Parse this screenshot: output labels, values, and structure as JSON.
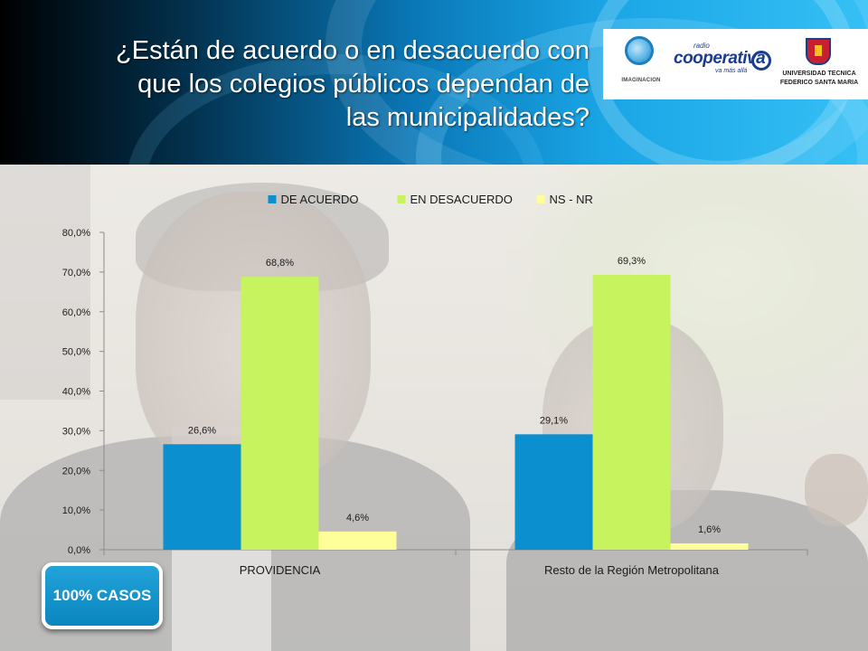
{
  "header": {
    "title_lines": [
      "¿Están de acuerdo o en desacuerdo con",
      "que los colegios públicos dependan de",
      "las municipalidades?"
    ]
  },
  "logos": {
    "imaginacion": "IMAGINACION",
    "cooperativa_small": "radio",
    "cooperativa": "cooperativa",
    "cooperativa_tagline": "va más allá",
    "utfsm_line1": "UNIVERSIDAD TECNICA",
    "utfsm_line2": "FEDERICO SANTA MARIA"
  },
  "badge": {
    "label": "100% CASOS"
  },
  "chart_data": {
    "type": "bar",
    "categories": [
      "PROVIDENCIA",
      "Resto de la Región Metropolitana"
    ],
    "series": [
      {
        "name": "DE ACUERDO",
        "color": "#0b8fcf",
        "values": [
          26.6,
          29.1
        ],
        "labels": [
          "26,6%",
          "29,1%"
        ]
      },
      {
        "name": "EN DESACUERDO",
        "color": "#c7f35e",
        "values": [
          68.8,
          69.3
        ],
        "labels": [
          "68,8%",
          "69,3%"
        ]
      },
      {
        "name": "NS - NR",
        "color": "#ffff99",
        "values": [
          4.6,
          1.6
        ],
        "labels": [
          "4,6%",
          "1,6%"
        ]
      }
    ],
    "ylim": [
      0,
      80
    ],
    "yticks": [
      0,
      10,
      20,
      30,
      40,
      50,
      60,
      70,
      80
    ],
    "ytick_labels": [
      "0,0%",
      "10,0%",
      "20,0%",
      "30,0%",
      "40,0%",
      "50,0%",
      "60,0%",
      "70,0%",
      "80,0%"
    ],
    "legend_position": "top",
    "grid": false
  }
}
